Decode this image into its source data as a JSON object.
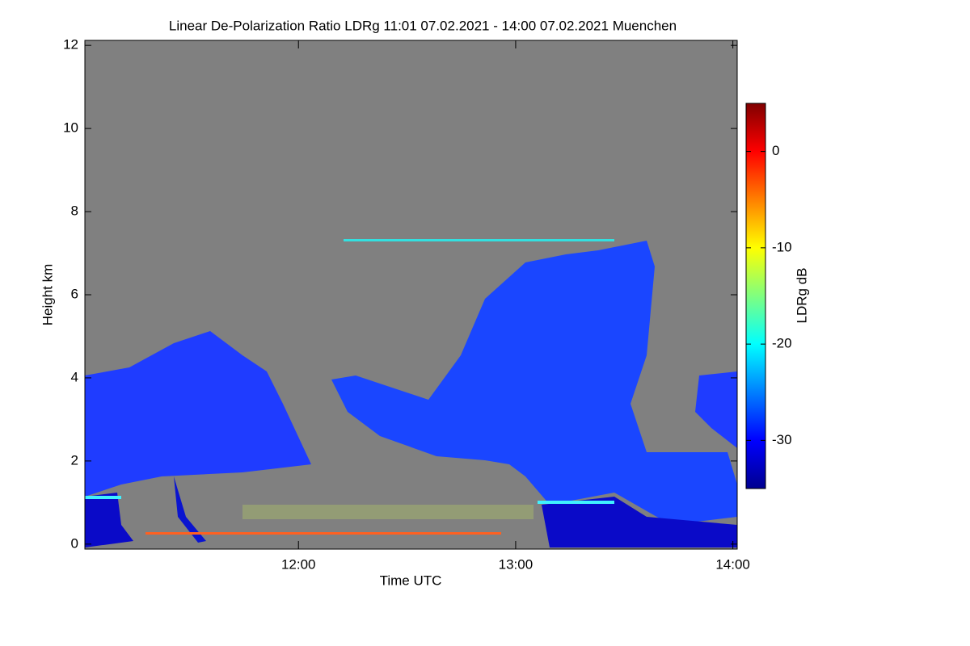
{
  "chart_data": {
    "type": "heatmap",
    "title": "Linear De-Polarization Ratio LDRg   11:01 07.02.2021 - 14:00 07.02.2021 Muenchen",
    "x_label": "Time UTC",
    "y_label": "Height km",
    "colorbar_label": "LDRg dB",
    "xlim": [
      11.0167,
      14.02
    ],
    "xticks": [
      {
        "value": 12,
        "label": "12:00"
      },
      {
        "value": 13,
        "label": "13:00"
      },
      {
        "value": 14,
        "label": "14:00"
      }
    ],
    "ylim": [
      -0.12,
      12.12
    ],
    "yticks": [
      0,
      2,
      4,
      6,
      8,
      10,
      12
    ],
    "clim": [
      -35,
      5
    ],
    "cticks": [
      0,
      -10,
      -20,
      -30
    ],
    "colormap": "jet"
  }
}
